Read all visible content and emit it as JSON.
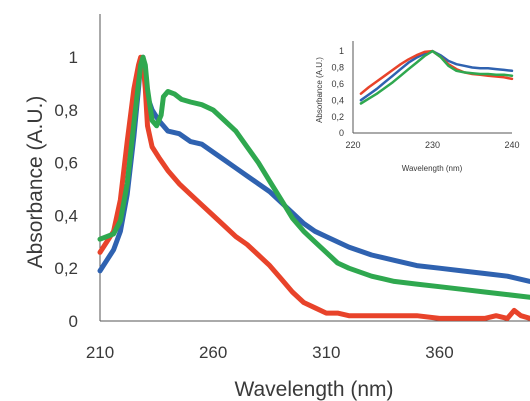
{
  "chart_data": [
    {
      "type": "line",
      "xlabel": "Wavelength (nm)",
      "ylabel": "Absorbance (A.U.)",
      "xlim": [
        210,
        400
      ],
      "ylim": [
        0,
        1.05
      ],
      "xticks": [
        210,
        260,
        310,
        360
      ],
      "xtick_labels": [
        "210",
        "260",
        "310",
        "360"
      ],
      "yticks": [
        0,
        0.2,
        0.4,
        0.6,
        0.8,
        1
      ],
      "ytick_labels": [
        "0",
        "0,2",
        "0,4",
        "0,6",
        "0,8",
        "1"
      ],
      "grid": false,
      "series": [
        {
          "color": "#2f62b0",
          "x": [
            210,
            213,
            216,
            219,
            222,
            225,
            227,
            228,
            229,
            230,
            231,
            233,
            236,
            240,
            245,
            250,
            255,
            260,
            265,
            270,
            275,
            280,
            285,
            290,
            295,
            300,
            305,
            310,
            315,
            320,
            330,
            340,
            350,
            360,
            370,
            380,
            390,
            400
          ],
          "y": [
            0.19,
            0.23,
            0.27,
            0.34,
            0.48,
            0.7,
            0.88,
            0.98,
            1.0,
            0.94,
            0.85,
            0.8,
            0.76,
            0.72,
            0.71,
            0.68,
            0.67,
            0.64,
            0.61,
            0.58,
            0.55,
            0.52,
            0.49,
            0.45,
            0.41,
            0.37,
            0.34,
            0.32,
            0.3,
            0.28,
            0.25,
            0.23,
            0.21,
            0.2,
            0.19,
            0.18,
            0.17,
            0.15
          ]
        },
        {
          "color": "#e8432a",
          "x": [
            210,
            213,
            216,
            219,
            222,
            225,
            227,
            228,
            229,
            230,
            231,
            233,
            236,
            240,
            245,
            250,
            255,
            260,
            265,
            270,
            275,
            280,
            285,
            290,
            295,
            300,
            305,
            310,
            315,
            320,
            330,
            340,
            350,
            360,
            370,
            380,
            385,
            390,
            393,
            396,
            400
          ],
          "y": [
            0.26,
            0.3,
            0.34,
            0.46,
            0.68,
            0.88,
            0.97,
            1.0,
            0.98,
            0.88,
            0.74,
            0.66,
            0.62,
            0.57,
            0.52,
            0.48,
            0.44,
            0.4,
            0.36,
            0.32,
            0.29,
            0.25,
            0.21,
            0.16,
            0.11,
            0.07,
            0.05,
            0.03,
            0.03,
            0.02,
            0.02,
            0.02,
            0.02,
            0.01,
            0.01,
            0.01,
            0.02,
            0.01,
            0.04,
            0.02,
            0.01
          ]
        },
        {
          "color": "#2fa84f",
          "x": [
            210,
            213,
            216,
            219,
            222,
            225,
            227,
            228,
            229,
            230,
            231,
            233,
            235,
            237,
            238,
            240,
            243,
            246,
            250,
            255,
            260,
            265,
            270,
            275,
            280,
            285,
            290,
            295,
            300,
            305,
            310,
            315,
            320,
            330,
            340,
            350,
            360,
            370,
            380,
            390,
            400
          ],
          "y": [
            0.31,
            0.32,
            0.33,
            0.38,
            0.52,
            0.75,
            0.9,
            0.97,
            1.0,
            0.97,
            0.88,
            0.76,
            0.74,
            0.78,
            0.85,
            0.87,
            0.86,
            0.84,
            0.83,
            0.82,
            0.8,
            0.76,
            0.72,
            0.66,
            0.6,
            0.53,
            0.46,
            0.39,
            0.34,
            0.3,
            0.26,
            0.22,
            0.2,
            0.17,
            0.15,
            0.14,
            0.13,
            0.12,
            0.11,
            0.1,
            0.09
          ]
        }
      ]
    },
    {
      "type": "line",
      "xlabel": "Wavelength (nm)",
      "ylabel": "Absorbance (A.U.)",
      "xlim": [
        220,
        240
      ],
      "ylim": [
        0,
        1.05
      ],
      "xticks": [
        220,
        230,
        240
      ],
      "xtick_labels": [
        "220",
        "230",
        "240"
      ],
      "yticks": [
        0,
        0.2,
        0.4,
        0.6,
        0.8,
        1
      ],
      "ytick_labels": [
        "0",
        "0,2",
        "0,4",
        "0,6",
        "0,8",
        "1"
      ],
      "grid": false,
      "series": [
        {
          "color": "#2f62b0",
          "x": [
            221,
            222,
            223,
            224,
            225,
            226,
            227,
            228,
            229,
            230,
            231,
            232,
            233,
            234,
            235,
            236,
            237,
            238,
            239,
            240
          ],
          "y": [
            0.4,
            0.47,
            0.54,
            0.62,
            0.7,
            0.78,
            0.86,
            0.92,
            0.97,
            1.0,
            0.95,
            0.88,
            0.84,
            0.82,
            0.8,
            0.79,
            0.79,
            0.78,
            0.77,
            0.76
          ]
        },
        {
          "color": "#e8432a",
          "x": [
            221,
            222,
            223,
            224,
            225,
            226,
            227,
            228,
            229,
            230,
            231,
            232,
            233,
            234,
            235,
            236,
            237,
            238,
            239,
            240
          ],
          "y": [
            0.48,
            0.56,
            0.63,
            0.7,
            0.77,
            0.84,
            0.9,
            0.95,
            0.99,
            1.0,
            0.93,
            0.84,
            0.78,
            0.74,
            0.72,
            0.71,
            0.7,
            0.69,
            0.68,
            0.66
          ]
        },
        {
          "color": "#2fa84f",
          "x": [
            221,
            222,
            223,
            224,
            225,
            226,
            227,
            228,
            229,
            230,
            231,
            232,
            233,
            234,
            235,
            236,
            237,
            238,
            239,
            240
          ],
          "y": [
            0.36,
            0.42,
            0.48,
            0.55,
            0.62,
            0.7,
            0.78,
            0.86,
            0.94,
            1.0,
            0.93,
            0.82,
            0.76,
            0.74,
            0.73,
            0.72,
            0.72,
            0.71,
            0.71,
            0.7
          ]
        }
      ]
    }
  ]
}
